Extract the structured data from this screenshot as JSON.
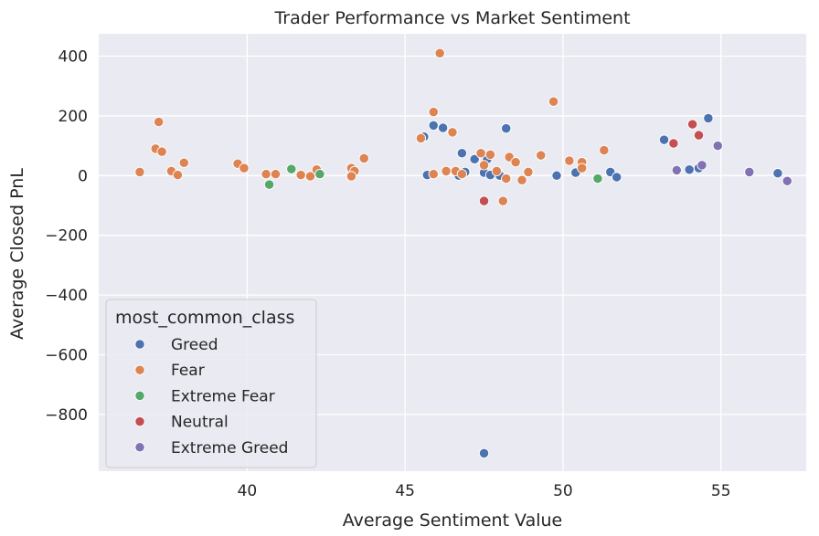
{
  "chart_data": {
    "type": "scatter",
    "title": "Trader Performance vs Market Sentiment",
    "xlabel": "Average Sentiment Value",
    "ylabel": "Average Closed PnL",
    "xlim": [
      35.3,
      57.7
    ],
    "ylim": [
      -990,
      475
    ],
    "xticks": [
      40,
      45,
      50,
      55
    ],
    "yticks": [
      -800,
      -600,
      -400,
      -200,
      0,
      200,
      400
    ],
    "ytick_labels": [
      "−800",
      "−600",
      "−400",
      "−200",
      "0",
      "200",
      "400"
    ],
    "grid": true,
    "legend": {
      "title": "most_common_class",
      "placement": "lower-left"
    },
    "series": [
      {
        "name": "Greed",
        "color": "#4c72b0",
        "points": [
          [
            45.6,
            130
          ],
          [
            45.7,
            2
          ],
          [
            45.9,
            168
          ],
          [
            46.2,
            160
          ],
          [
            46.7,
            0
          ],
          [
            46.8,
            75
          ],
          [
            46.9,
            12
          ],
          [
            47.2,
            55
          ],
          [
            47.5,
            10
          ],
          [
            47.6,
            55
          ],
          [
            47.7,
            2
          ],
          [
            48.0,
            0
          ],
          [
            48.2,
            158
          ],
          [
            49.8,
            0
          ],
          [
            50.4,
            10
          ],
          [
            51.5,
            12
          ],
          [
            51.7,
            -5
          ],
          [
            53.2,
            120
          ],
          [
            54.0,
            20
          ],
          [
            54.3,
            25
          ],
          [
            54.6,
            192
          ],
          [
            56.8,
            8
          ],
          [
            47.5,
            -930
          ]
        ]
      },
      {
        "name": "Fear",
        "color": "#dd8452",
        "points": [
          [
            36.6,
            12
          ],
          [
            37.1,
            90
          ],
          [
            37.2,
            180
          ],
          [
            37.3,
            80
          ],
          [
            37.6,
            15
          ],
          [
            37.8,
            2
          ],
          [
            38.0,
            43
          ],
          [
            39.7,
            40
          ],
          [
            39.9,
            25
          ],
          [
            40.6,
            5
          ],
          [
            40.9,
            5
          ],
          [
            41.7,
            2
          ],
          [
            42.0,
            -2
          ],
          [
            42.2,
            20
          ],
          [
            43.3,
            25
          ],
          [
            43.4,
            15
          ],
          [
            43.3,
            -2
          ],
          [
            43.7,
            58
          ],
          [
            45.5,
            125
          ],
          [
            45.9,
            213
          ],
          [
            45.9,
            5
          ],
          [
            46.1,
            410
          ],
          [
            46.3,
            15
          ],
          [
            46.5,
            145
          ],
          [
            46.6,
            15
          ],
          [
            46.8,
            5
          ],
          [
            47.4,
            75
          ],
          [
            47.5,
            35
          ],
          [
            47.7,
            70
          ],
          [
            47.9,
            15
          ],
          [
            48.1,
            -85
          ],
          [
            48.2,
            -10
          ],
          [
            48.3,
            62
          ],
          [
            48.5,
            45
          ],
          [
            48.7,
            -15
          ],
          [
            48.9,
            12
          ],
          [
            49.3,
            68
          ],
          [
            49.7,
            248
          ],
          [
            50.2,
            50
          ],
          [
            50.6,
            45
          ],
          [
            50.6,
            25
          ],
          [
            51.3,
            85
          ]
        ]
      },
      {
        "name": "Extreme Fear",
        "color": "#55a868",
        "points": [
          [
            40.7,
            -30
          ],
          [
            41.4,
            22
          ],
          [
            42.3,
            5
          ],
          [
            51.1,
            -10
          ]
        ]
      },
      {
        "name": "Neutral",
        "color": "#c44e52",
        "points": [
          [
            47.5,
            -85
          ],
          [
            53.5,
            108
          ],
          [
            54.1,
            172
          ],
          [
            54.3,
            135
          ]
        ]
      },
      {
        "name": "Extreme Greed",
        "color": "#8172b3",
        "points": [
          [
            53.6,
            18
          ],
          [
            54.4,
            35
          ],
          [
            54.9,
            100
          ],
          [
            55.9,
            12
          ],
          [
            57.1,
            -18
          ]
        ]
      }
    ]
  }
}
